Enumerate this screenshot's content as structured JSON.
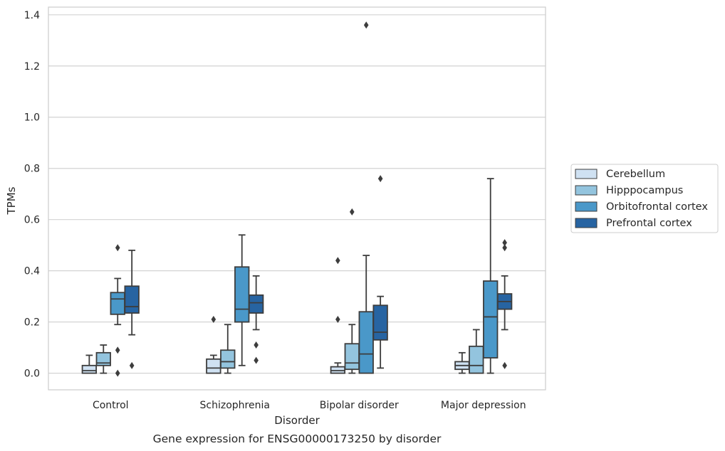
{
  "chart_data": {
    "type": "boxplot",
    "xlabel": "Disorder",
    "ylabel": "TPMs",
    "caption": "Gene expression for ENSG00000173250 by disorder",
    "ylim": [
      -0.065,
      1.43
    ],
    "yticks": [
      0.0,
      0.2,
      0.4,
      0.6,
      0.8,
      1.0,
      1.2,
      1.4
    ],
    "ytick_labels": [
      "0.0",
      "0.2",
      "0.4",
      "0.6",
      "0.8",
      "1.0",
      "1.2",
      "1.4"
    ],
    "categories": [
      "Control",
      "Schizophrenia",
      "Bipolar disorder",
      "Major depression"
    ],
    "grid": "horizontal",
    "legend_position": "right",
    "series": [
      {
        "name": "Cerebellum",
        "color": "#cfe1f2",
        "boxes": [
          {
            "whislo": 0.0,
            "q1": 0.0,
            "med": 0.01,
            "q3": 0.03,
            "whishi": 0.07,
            "fliers": []
          },
          {
            "whislo": 0.0,
            "q1": 0.0,
            "med": 0.02,
            "q3": 0.055,
            "whishi": 0.07,
            "fliers": [
              0.21
            ]
          },
          {
            "whislo": 0.0,
            "q1": 0.0,
            "med": 0.01,
            "q3": 0.025,
            "whishi": 0.04,
            "fliers": [
              0.21,
              0.44
            ]
          },
          {
            "whislo": 0.0,
            "q1": 0.015,
            "med": 0.03,
            "q3": 0.045,
            "whishi": 0.08,
            "fliers": []
          }
        ]
      },
      {
        "name": "Hipppocampus",
        "color": "#93c4de",
        "boxes": [
          {
            "whislo": 0.0,
            "q1": 0.03,
            "med": 0.04,
            "q3": 0.08,
            "whishi": 0.11,
            "fliers": []
          },
          {
            "whislo": 0.0,
            "q1": 0.02,
            "med": 0.045,
            "q3": 0.09,
            "whishi": 0.19,
            "fliers": []
          },
          {
            "whislo": 0.0,
            "q1": 0.015,
            "med": 0.04,
            "q3": 0.115,
            "whishi": 0.19,
            "fliers": [
              0.63
            ]
          },
          {
            "whislo": 0.0,
            "q1": 0.0,
            "med": 0.03,
            "q3": 0.105,
            "whishi": 0.17,
            "fliers": []
          }
        ]
      },
      {
        "name": "Orbitofrontal cortex",
        "color": "#4a98c9",
        "boxes": [
          {
            "whislo": 0.19,
            "q1": 0.23,
            "med": 0.29,
            "q3": 0.315,
            "whishi": 0.37,
            "fliers": [
              0.0,
              0.09,
              0.49
            ]
          },
          {
            "whislo": 0.03,
            "q1": 0.2,
            "med": 0.25,
            "q3": 0.415,
            "whishi": 0.54,
            "fliers": []
          },
          {
            "whislo": 0.0,
            "q1": 0.0,
            "med": 0.075,
            "q3": 0.24,
            "whishi": 0.46,
            "fliers": [
              1.36
            ]
          },
          {
            "whislo": 0.0,
            "q1": 0.06,
            "med": 0.22,
            "q3": 0.36,
            "whishi": 0.76,
            "fliers": []
          }
        ]
      },
      {
        "name": "Prefrontal cortex",
        "color": "#2764a2",
        "boxes": [
          {
            "whislo": 0.15,
            "q1": 0.235,
            "med": 0.26,
            "q3": 0.34,
            "whishi": 0.48,
            "fliers": [
              0.03
            ]
          },
          {
            "whislo": 0.17,
            "q1": 0.235,
            "med": 0.275,
            "q3": 0.305,
            "whishi": 0.38,
            "fliers": [
              0.05,
              0.11
            ]
          },
          {
            "whislo": 0.02,
            "q1": 0.13,
            "med": 0.16,
            "q3": 0.265,
            "whishi": 0.3,
            "fliers": [
              0.76
            ]
          },
          {
            "whislo": 0.17,
            "q1": 0.25,
            "med": 0.28,
            "q3": 0.31,
            "whishi": 0.38,
            "fliers": [
              0.03,
              0.49,
              0.51
            ]
          }
        ]
      }
    ]
  }
}
